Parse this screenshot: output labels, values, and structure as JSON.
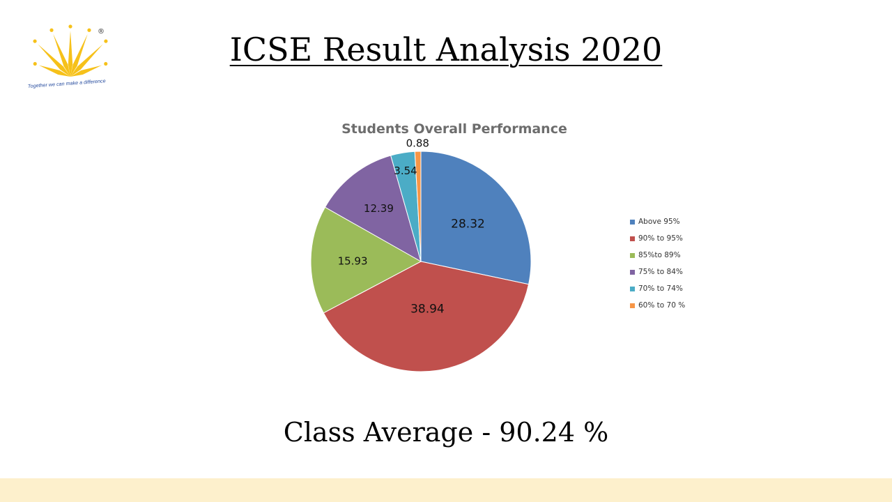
{
  "slide": {
    "title": "ICSE Result Analysis 2020",
    "footer": "Class Average - 90.24 %"
  },
  "logo": {
    "tagline": "Together we can make a difference",
    "registered_mark": "®",
    "color": "#f6c11a"
  },
  "chart_data": {
    "type": "pie",
    "title": "Students Overall Performance",
    "categories": [
      "Above 95%",
      "90% to 95%",
      "85%to 89%",
      "75% to 84%",
      "70% to 74%",
      "60% to 70 %"
    ],
    "values": [
      28.32,
      38.94,
      15.93,
      12.39,
      3.54,
      0.88
    ],
    "data_labels": [
      "28.32",
      "38.94",
      "15.93",
      "12.39",
      "3.54",
      "0.88"
    ],
    "colors": [
      "#4f81bd",
      "#c0504d",
      "#9bbb59",
      "#8064a2",
      "#4bacc6",
      "#f79646"
    ],
    "legend_position": "right",
    "start_angle": "top, clockwise"
  }
}
